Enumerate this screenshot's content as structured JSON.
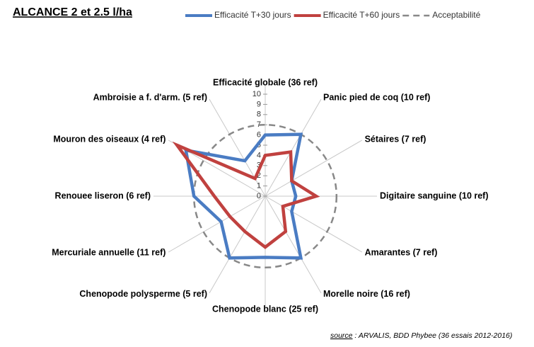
{
  "chart_data": {
    "type": "radar",
    "title": "ALCANCE   2 et 2.5 l/ha",
    "categories": [
      "Efficacité globale (36 ref)",
      "Panic pied de coq (10 ref)",
      "Sétaires (7 ref)",
      "Digitaire sanguine (10 ref)",
      "Amarantes (7 ref)",
      "Morelle noire (16 ref)",
      "Chenopode blanc (25 ref)",
      "Chenopode polysperme (5 ref)",
      "Mercuriale annuelle (11 ref)",
      "Renouee liseron (6 ref)",
      "Mouron des oiseaux (4 ref)",
      "Ambroisie a f. d'arm. (5 ref)"
    ],
    "series": [
      {
        "name": "Efficacité T+30 jours",
        "color": "#4a7cc3",
        "values": [
          6,
          7,
          3,
          3,
          3,
          7,
          6,
          7,
          5,
          7,
          9,
          4
        ]
      },
      {
        "name": "Efficacité T+60 jours",
        "color": "#c0413f",
        "values": [
          4,
          5,
          3,
          5,
          2,
          4,
          5,
          4,
          4,
          5,
          10,
          2
        ]
      }
    ],
    "acceptability": {
      "name": "Acceptabilité",
      "color": "#888888",
      "value": 7
    },
    "rlim": [
      0,
      10
    ],
    "rticks": [
      0,
      1,
      2,
      3,
      4,
      5,
      6,
      7,
      8,
      9,
      10
    ],
    "source_label": "source",
    "source_text": " : ARVALIS, BDD Phybee  (36 essais 2012-2016)"
  }
}
